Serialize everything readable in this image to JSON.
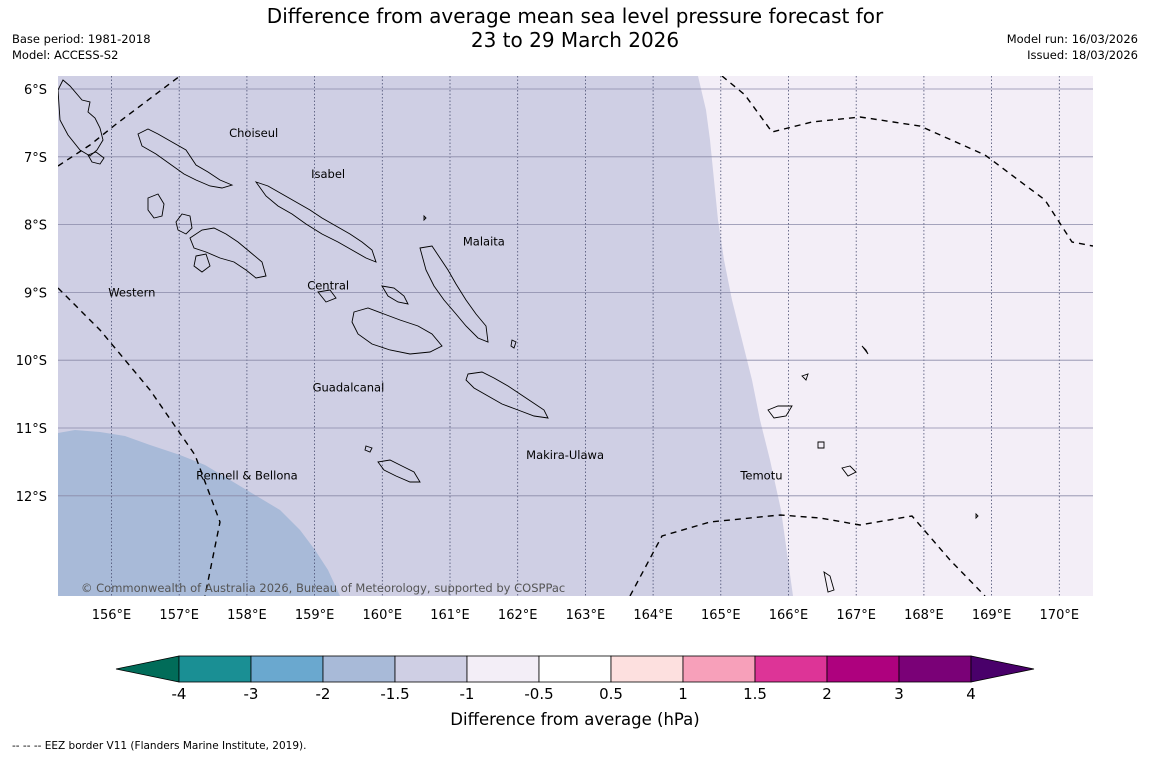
{
  "title_line1": "Difference from average mean sea level pressure forecast for",
  "title_line2": "23 to 29 March 2026",
  "base_period": "Base period: 1981-2018",
  "model": "Model: ACCESS-S2",
  "model_run": "Model run: 16/03/2026",
  "issued": "Issued: 18/03/2026",
  "map": {
    "lon_range": [
      155.2,
      170.5
    ],
    "lat_range": [
      -13.5,
      -5.8
    ],
    "lat_ticks": [
      {
        "value": -6,
        "label": "6°S"
      },
      {
        "value": -7,
        "label": "7°S"
      },
      {
        "value": -8,
        "label": "8°S"
      },
      {
        "value": -9,
        "label": "9°S"
      },
      {
        "value": -10,
        "label": "10°S"
      },
      {
        "value": -11,
        "label": "11°S"
      },
      {
        "value": -12,
        "label": "12°S"
      }
    ],
    "lon_ticks": [
      {
        "value": 156,
        "label": "156°E"
      },
      {
        "value": 157,
        "label": "157°E"
      },
      {
        "value": 158,
        "label": "158°E"
      },
      {
        "value": 159,
        "label": "159°E"
      },
      {
        "value": 160,
        "label": "160°E"
      },
      {
        "value": 161,
        "label": "161°E"
      },
      {
        "value": 162,
        "label": "162°E"
      },
      {
        "value": 163,
        "label": "163°E"
      },
      {
        "value": 164,
        "label": "164°E"
      },
      {
        "value": 165,
        "label": "165°E"
      },
      {
        "value": 166,
        "label": "166°E"
      },
      {
        "value": 167,
        "label": "167°E"
      },
      {
        "value": 168,
        "label": "168°E"
      },
      {
        "value": 169,
        "label": "169°E"
      },
      {
        "value": 170,
        "label": "170°E"
      }
    ],
    "places": [
      {
        "name": "Choiseul",
        "lon": 158.1,
        "lat": -6.65
      },
      {
        "name": "Isabel",
        "lon": 159.2,
        "lat": -7.25
      },
      {
        "name": "Malaita",
        "lon": 161.5,
        "lat": -8.25
      },
      {
        "name": "Western",
        "lon": 156.3,
        "lat": -9.0
      },
      {
        "name": "Central",
        "lon": 159.2,
        "lat": -8.9
      },
      {
        "name": "Guadalcanal",
        "lon": 159.5,
        "lat": -10.4
      },
      {
        "name": "Makira-Ulawa",
        "lon": 162.7,
        "lat": -11.4
      },
      {
        "name": "Rennell & Bellona",
        "lon": 158.0,
        "lat": -11.7
      },
      {
        "name": "Temotu",
        "lon": 165.6,
        "lat": -11.7
      }
    ],
    "copyright": "© Commonwealth of Australia 2026, Bureau of Meteorology, supported by COSPPac"
  },
  "colorbar": {
    "ticks": [
      "-4",
      "-3",
      "-2",
      "-1.5",
      "-1",
      "-0.5",
      "0.5",
      "1",
      "1.5",
      "2",
      "3",
      "4"
    ],
    "colors": [
      "#1a8f94",
      "#6aa8cf",
      "#a8bad8",
      "#cfcfe4",
      "#f3eef7",
      "#ffffff",
      "#fde0df",
      "#f7a0ba",
      "#dd3497",
      "#ae017e",
      "#7a0177"
    ],
    "extend_low_color": "#016c59",
    "extend_high_color": "#49006a",
    "label": "Difference from average (hPa)"
  },
  "fills": {
    "low": "#a8bad8",
    "mid": "#cfcfe4",
    "high": "#f3eef7"
  },
  "footnote": "--  --  -- EEZ border V11 (Flanders Marine Institute, 2019)."
}
